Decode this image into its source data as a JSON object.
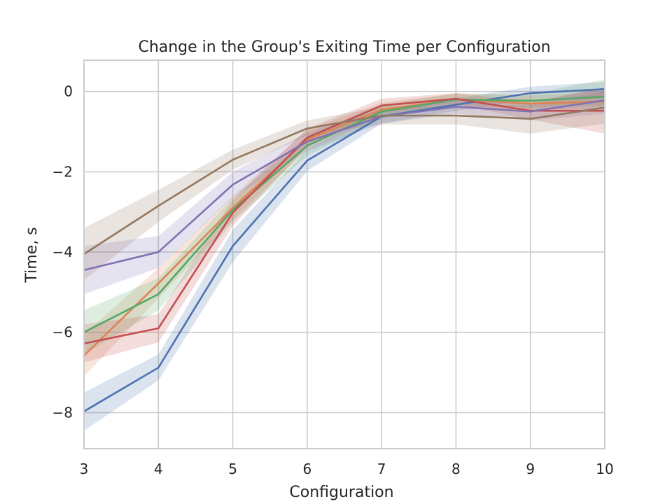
{
  "chart_data": {
    "type": "line",
    "title": "Change in the Group's Exiting Time per Configuration",
    "xlabel": "Configuration",
    "ylabel": "Time, s",
    "xlim": [
      3,
      10
    ],
    "ylim": [
      -8.9,
      0.78
    ],
    "x": [
      3,
      4,
      5,
      6,
      7,
      8,
      9,
      10
    ],
    "xticks": [
      "3",
      "4",
      "5",
      "6",
      "7",
      "8",
      "9",
      "10"
    ],
    "yticks": [
      0,
      -2,
      -4,
      -6,
      -8
    ],
    "ytick_labels": [
      "0",
      "−2",
      "−4",
      "−6",
      "−8"
    ],
    "grid": true,
    "legend": "none",
    "series": [
      {
        "color": "#4c72b0",
        "values": [
          -7.97,
          -6.88,
          -3.85,
          -1.72,
          -0.62,
          -0.33,
          -0.04,
          0.06
        ],
        "lower": [
          -8.45,
          -7.2,
          -4.25,
          -1.98,
          -0.8,
          -0.48,
          -0.2,
          -0.12
        ],
        "upper": [
          -7.5,
          -6.55,
          -3.45,
          -1.45,
          -0.45,
          -0.17,
          0.12,
          0.24
        ]
      },
      {
        "color": "#dd8452",
        "values": [
          -6.58,
          -4.78,
          -2.9,
          -1.2,
          -0.45,
          -0.2,
          -0.3,
          -0.25
        ],
        "lower": [
          -7.1,
          -5.15,
          -3.2,
          -1.45,
          -0.62,
          -0.35,
          -0.5,
          -0.5
        ],
        "upper": [
          -6.05,
          -4.4,
          -2.6,
          -0.95,
          -0.28,
          -0.05,
          -0.1,
          0.0
        ]
      },
      {
        "color": "#55a868",
        "values": [
          -6.0,
          -5.05,
          -2.95,
          -1.35,
          -0.5,
          -0.2,
          -0.23,
          -0.13
        ],
        "lower": [
          -6.55,
          -5.45,
          -3.25,
          -1.6,
          -0.68,
          -0.35,
          -0.4,
          -0.35
        ],
        "upper": [
          -5.45,
          -4.65,
          -2.65,
          -1.1,
          -0.32,
          -0.05,
          -0.06,
          0.3
        ]
      },
      {
        "color": "#c44e52",
        "values": [
          -6.28,
          -5.9,
          -3.02,
          -1.15,
          -0.35,
          -0.18,
          -0.48,
          -0.48
        ],
        "lower": [
          -6.75,
          -6.25,
          -3.35,
          -1.38,
          -0.52,
          -0.32,
          -0.7,
          -1.05
        ],
        "upper": [
          -5.8,
          -5.55,
          -2.7,
          -0.92,
          -0.18,
          -0.04,
          -0.26,
          0.1
        ]
      },
      {
        "color": "#8172b3",
        "values": [
          -4.45,
          -4.0,
          -2.32,
          -1.25,
          -0.62,
          -0.38,
          -0.5,
          -0.22
        ],
        "lower": [
          -5.05,
          -4.4,
          -2.65,
          -1.48,
          -0.8,
          -0.55,
          -0.72,
          -0.55
        ],
        "upper": [
          -3.85,
          -3.6,
          -2.0,
          -1.02,
          -0.45,
          -0.22,
          -0.28,
          0.1
        ]
      },
      {
        "color": "#937860",
        "values": [
          -4.05,
          -2.85,
          -1.7,
          -0.92,
          -0.6,
          -0.6,
          -0.68,
          -0.4
        ],
        "lower": [
          -4.7,
          -3.25,
          -1.95,
          -1.1,
          -0.82,
          -0.82,
          -1.05,
          -0.8
        ],
        "upper": [
          -3.4,
          -2.45,
          -1.45,
          -0.72,
          -0.38,
          -0.38,
          -0.32,
          0.0
        ]
      }
    ]
  }
}
